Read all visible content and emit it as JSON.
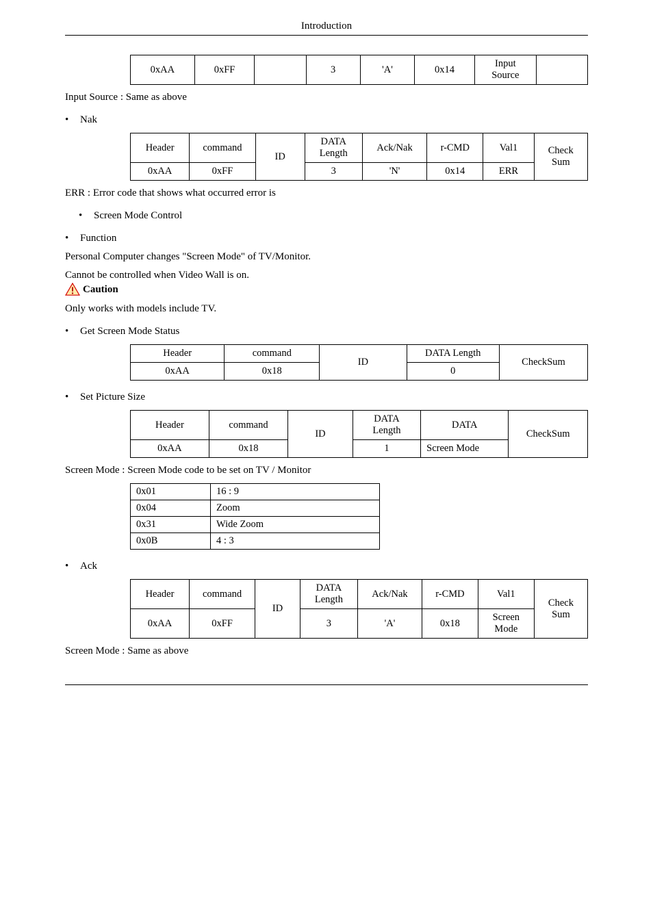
{
  "page_header": "Introduction",
  "table_ack_input": {
    "cells": [
      "0xAA",
      "0xFF",
      "",
      "3",
      "'A'",
      "0x14",
      "Input\nSource",
      ""
    ],
    "widths": [
      78,
      72,
      60,
      64,
      64,
      72,
      74,
      60
    ]
  },
  "text_input_source_same": "Input Source : Same as above",
  "bullet_nak": "Nak",
  "table_nak": {
    "header": [
      "Header",
      "command",
      "ID",
      "DATA\nLength",
      "Ack/Nak",
      "r-CMD",
      "Val1",
      "Check\nSum"
    ],
    "row": [
      "0xAA",
      "0xFF",
      "",
      "3",
      "'N'",
      "0x14",
      "ERR",
      ""
    ],
    "widths": [
      70,
      80,
      56,
      68,
      78,
      66,
      58,
      62
    ]
  },
  "text_err_desc": "ERR : Error code that shows what occurred error is",
  "bullet_screen_mode_control": "Screen Mode Control",
  "bullet_function": "Function",
  "text_function_desc": "Personal Computer changes \"Screen Mode\" of TV/Monitor.",
  "text_cannot_controlled": "Cannot be controlled when Video Wall is on.",
  "text_caution": "Caution",
  "caution_colors": {
    "border": "#d40000",
    "fill": "#ffe9a8",
    "bang": "#b00000"
  },
  "text_only_works": "Only works with models include TV.",
  "bullet_get_screen_mode": "Get Screen Mode Status",
  "table_get_screen": {
    "header": [
      "Header",
      "command",
      "ID",
      "DATA Length",
      "CheckSum"
    ],
    "row": [
      "0xAA",
      "0x18",
      "",
      "0",
      ""
    ],
    "widths": [
      130,
      130,
      122,
      128,
      118
    ]
  },
  "bullet_set_picture": "Set Picture Size",
  "table_set_picture": {
    "header": [
      "Header",
      "command",
      "ID",
      "DATA\nLength",
      "DATA",
      "CheckSum"
    ],
    "row": [
      "0xAA",
      "0x18",
      "",
      "1",
      "Screen Mode",
      ""
    ],
    "widths": [
      100,
      100,
      80,
      84,
      114,
      100
    ]
  },
  "text_screen_mode_code": "Screen Mode : Screen Mode code to be set on TV / Monitor",
  "table_modes": {
    "rows": [
      [
        "0x01",
        "16 : 9"
      ],
      [
        "0x04",
        "Zoom"
      ],
      [
        "0x31",
        "Wide Zoom"
      ],
      [
        "0x0B",
        "4 : 3"
      ]
    ],
    "widths": [
      100,
      230
    ]
  },
  "bullet_ack": "Ack",
  "table_ack_screen": {
    "header": [
      "Header",
      "command",
      "ID",
      "DATA\nLength",
      "Ack/Nak",
      "r-CMD",
      "Val1",
      "Check\nSum"
    ],
    "row": [
      "0xAA",
      "0xFF",
      "",
      "3",
      "'A'",
      "0x18",
      "Screen\nMode",
      ""
    ],
    "widths": [
      70,
      80,
      50,
      68,
      78,
      66,
      66,
      62
    ]
  },
  "text_screen_mode_same": "Screen Mode : Same as above"
}
